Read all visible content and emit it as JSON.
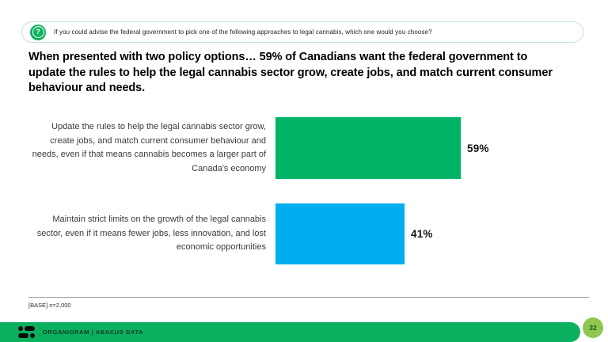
{
  "banner": {
    "icon": "question-circle-icon",
    "question": "If you could advise the federal government to pick one of the following approaches to legal cannabis, which one would you choose?",
    "border_color": "#c2e3d2",
    "icon_color": "#10b161"
  },
  "headline": "When presented with two policy options… 59% of Canadians want the federal government to update the rules to help the legal cannabis sector grow, create jobs, and match current consumer behaviour and needs.",
  "chart_data": {
    "type": "bar",
    "orientation": "horizontal",
    "title": "",
    "xlabel": "",
    "ylabel": "",
    "categories": [
      "Update the rules to help the legal cannabis sector grow, create jobs, and match current consumer behaviour and needs, even if that means cannabis becomes a larger part of Canada's economy",
      "Maintain strict limits on the growth of the legal cannabis sector, even if it means fewer jobs, less innovation, and lost economic opportunities"
    ],
    "values": [
      59,
      41
    ],
    "value_labels": [
      "59%",
      "41%"
    ],
    "bar_colors": [
      "#00b466",
      "#00aeef"
    ],
    "xlim": [
      0,
      100
    ],
    "grid": false,
    "legend": false
  },
  "footer": {
    "base_note": "[BASE] n=2,000",
    "brand_text": "ORGANIGRAM | ABACUS DATA",
    "brand_bar_color": "#0bb05f",
    "page_number": "32",
    "page_badge_color": "#8fc74f"
  }
}
